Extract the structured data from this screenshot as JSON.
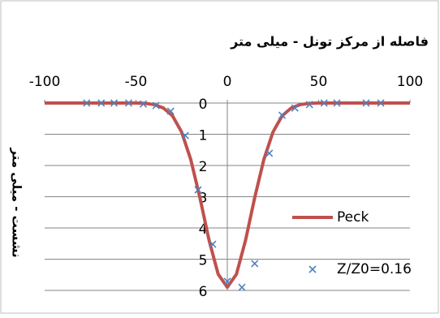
{
  "chart_data": {
    "type": "line",
    "title": "فاصله از مرکز تونل - میلی متر",
    "y_label": "نشست - میلی متر",
    "xlim": [
      -100,
      100
    ],
    "xticks": [
      -100,
      -50,
      0,
      50,
      100
    ],
    "ylim": [
      0,
      6
    ],
    "yticks": [
      0,
      1,
      2,
      3,
      4,
      5,
      6
    ],
    "y_inverted": true,
    "x_axis_position": "top",
    "grid": true,
    "legend": "right",
    "series": [
      {
        "name": "Peck",
        "type": "line",
        "color": "#c0504d",
        "x": [
          -100,
          -80,
          -60,
          -50,
          -45,
          -40,
          -35,
          -30,
          -25,
          -20,
          -15,
          -10,
          -5,
          0,
          5,
          10,
          15,
          20,
          25,
          30,
          35,
          40,
          45,
          50,
          60,
          80,
          100
        ],
        "values": [
          0,
          0,
          0,
          0,
          0.01,
          0.05,
          0.16,
          0.41,
          0.93,
          1.81,
          3.03,
          4.39,
          5.48,
          5.9,
          5.48,
          4.39,
          3.03,
          1.81,
          0.93,
          0.41,
          0.16,
          0.05,
          0.01,
          0,
          0,
          0,
          0
        ]
      },
      {
        "name": "Z/Z0=0.16",
        "type": "scatter",
        "color": "#4f81bd",
        "x": [
          -77,
          -69,
          -62,
          -54,
          -46,
          -39,
          -31,
          -23,
          -16,
          -8,
          0,
          8,
          15,
          23,
          30,
          37,
          45,
          53,
          60,
          76,
          84
        ],
        "values": [
          0,
          0,
          0,
          0,
          0.03,
          0.08,
          0.26,
          1.04,
          2.78,
          4.52,
          5.71,
          5.9,
          5.14,
          1.61,
          0.39,
          0.16,
          0.05,
          0,
          0,
          0,
          0
        ]
      }
    ]
  }
}
